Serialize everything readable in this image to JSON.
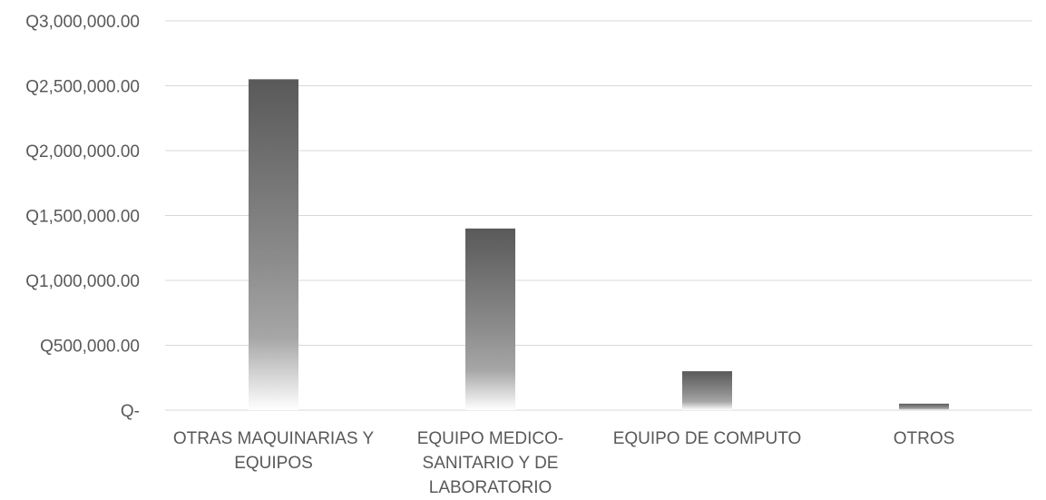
{
  "chart_data": {
    "type": "bar",
    "title": "",
    "xlabel": "",
    "ylabel": "",
    "categories": [
      [
        "OTRAS MAQUINARIAS Y",
        "EQUIPOS"
      ],
      [
        "EQUIPO MEDICO-",
        "SANITARIO Y DE",
        "LABORATORIO"
      ],
      [
        "EQUIPO DE COMPUTO"
      ],
      [
        "OTROS"
      ]
    ],
    "values": [
      2550000,
      1400000,
      300000,
      50000
    ],
    "ylim": [
      0,
      3000000
    ],
    "yticks": [
      0,
      500000,
      1000000,
      1500000,
      2000000,
      2500000,
      3000000
    ],
    "ytick_labels": [
      "Q-",
      "Q500,000.00",
      "Q1,000,000.00",
      "Q1,500,000.00",
      "Q2,000,000.00",
      "Q2,500,000.00",
      "Q3,000,000.00"
    ],
    "grid": true,
    "legend": "none",
    "bar_colors": {
      "top": "#595959",
      "bottom": "#ffffff"
    },
    "gridline_color": "#d9d9d9",
    "text_color": "#595959"
  }
}
